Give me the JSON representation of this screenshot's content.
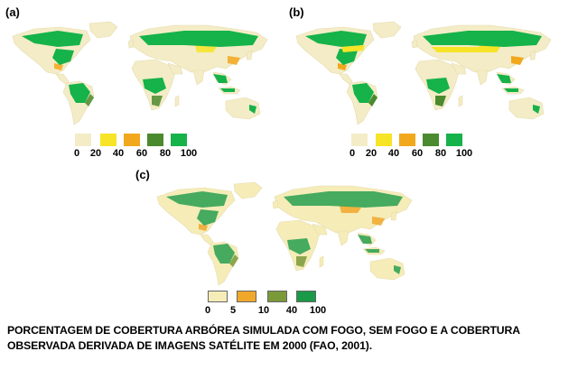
{
  "panels": [
    {
      "label": "(a)",
      "legend": {
        "ticks": [
          "0",
          "20",
          "40",
          "60",
          "80",
          "100"
        ],
        "colors": [
          "#f3ecc6",
          "#f7e426",
          "#f2a81d",
          "#4b8a2e",
          "#16b24a"
        ]
      }
    },
    {
      "label": "(b)",
      "legend": {
        "ticks": [
          "0",
          "20",
          "40",
          "60",
          "80",
          "100"
        ],
        "colors": [
          "#f3ecc6",
          "#f7e426",
          "#f2a81d",
          "#4b8a2e",
          "#16b24a"
        ]
      }
    },
    {
      "label": "(c)",
      "legend": {
        "ticks": [
          "0",
          "5",
          "10",
          "40",
          "100"
        ],
        "colors": [
          "#f5ecb8",
          "#f0a82a",
          "#7a9a3a",
          "#1a9a48"
        ]
      }
    }
  ],
  "caption": {
    "line1": "PORCENTAGEM DE COBERTURA ARBÓREA SIMULADA COM FOGO, SEM FOGO E A COBERTURA",
    "line2": "OBSERVADA DERIVADA DE IMAGENS SATÉLITE EM 2000 (FAO, 2001)."
  }
}
